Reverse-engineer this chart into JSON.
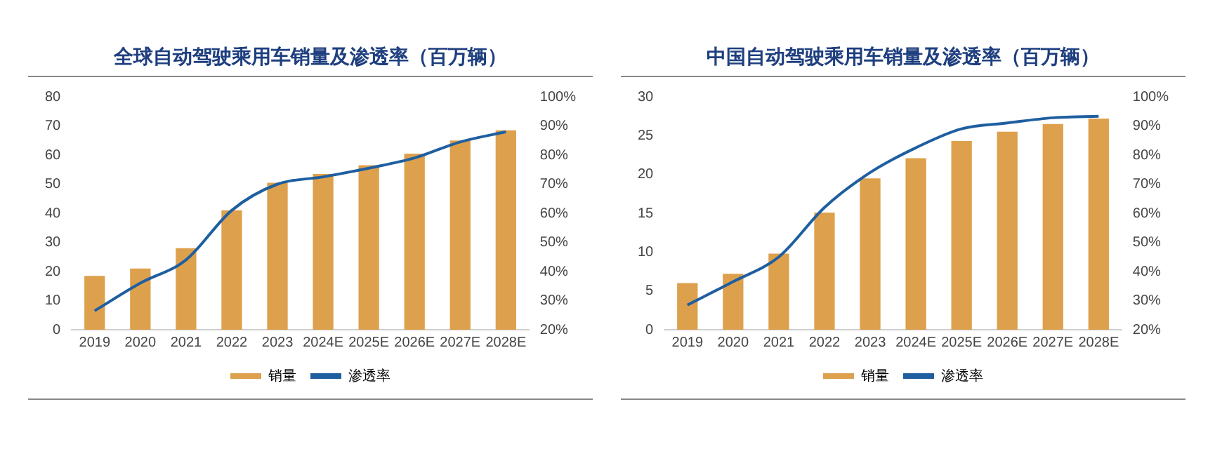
{
  "chart_data": [
    {
      "type": "bar",
      "title": "全球自动驾驶乘用车销量及渗透率（百万辆）",
      "categories": [
        "2019",
        "2020",
        "2021",
        "2022",
        "2023",
        "2024E",
        "2025E",
        "2026E",
        "2027E",
        "2028E"
      ],
      "series": [
        {
          "name": "销量",
          "color": "#dda04c",
          "values": [
            18.5,
            21,
            28,
            41,
            50.5,
            53.5,
            56.5,
            60.5,
            65,
            68.5
          ]
        },
        {
          "name": "渗透率",
          "type": "line",
          "axis": "y2",
          "color": "#1f5fa0",
          "values": [
            26.5,
            36,
            44,
            61,
            70,
            72.5,
            75.5,
            79,
            84.5,
            88
          ]
        }
      ],
      "ylim": [
        0,
        80
      ],
      "yticks": [
        0,
        10,
        20,
        30,
        40,
        50,
        60,
        70,
        80
      ],
      "y2lim": [
        20,
        100
      ],
      "y2ticks": [
        {
          "value": 20,
          "label": "20%"
        },
        {
          "value": 30,
          "label": "30%"
        },
        {
          "value": 40,
          "label": "40%"
        },
        {
          "value": 50,
          "label": "50%"
        },
        {
          "value": 60,
          "label": "60%"
        },
        {
          "value": 70,
          "label": "70%"
        },
        {
          "value": 80,
          "label": "80%"
        },
        {
          "value": 90,
          "label": "90%"
        },
        {
          "value": 100,
          "label": "100%"
        }
      ],
      "grid": false,
      "legend": "bottom",
      "marker": "none"
    },
    {
      "type": "bar",
      "title": "中国自动驾驶乘用车销量及渗透率（百万辆）",
      "categories": [
        "2019",
        "2020",
        "2021",
        "2022",
        "2023",
        "2024E",
        "2025E",
        "2026E",
        "2027E",
        "2028E"
      ],
      "series": [
        {
          "name": "销量",
          "color": "#dda04c",
          "values": [
            6,
            7.2,
            9.8,
            15.1,
            19.5,
            22.1,
            24.3,
            25.5,
            26.5,
            27.2
          ]
        },
        {
          "name": "渗透率",
          "type": "line",
          "axis": "y2",
          "color": "#1f5fa0",
          "values": [
            28.5,
            36.5,
            45,
            62,
            74,
            82.5,
            89,
            91,
            92.8,
            93.3
          ]
        }
      ],
      "ylim": [
        0,
        30
      ],
      "yticks": [
        0,
        5,
        10,
        15,
        20,
        25,
        30
      ],
      "y2lim": [
        20,
        100
      ],
      "y2ticks": [
        {
          "value": 20,
          "label": "20%"
        },
        {
          "value": 30,
          "label": "30%"
        },
        {
          "value": 40,
          "label": "40%"
        },
        {
          "value": 50,
          "label": "50%"
        },
        {
          "value": 60,
          "label": "60%"
        },
        {
          "value": 70,
          "label": "70%"
        },
        {
          "value": 80,
          "label": "80%"
        },
        {
          "value": 90,
          "label": "90%"
        },
        {
          "value": 100,
          "label": "100%"
        }
      ],
      "grid": false,
      "legend": "bottom",
      "marker": "none"
    }
  ]
}
